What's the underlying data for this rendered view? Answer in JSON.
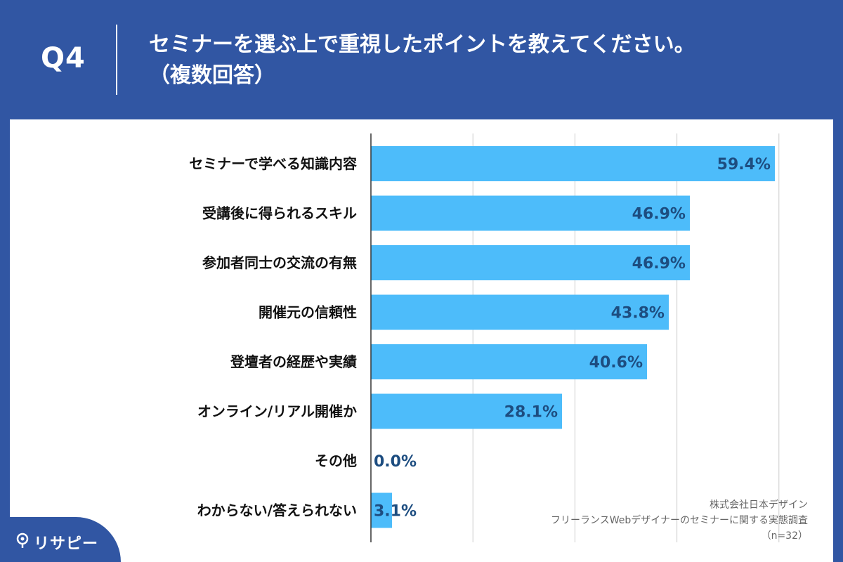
{
  "header": {
    "question_number": "Q4",
    "title_line1": "セミナーを選ぶ上で重視したポイントを教えてください。",
    "title_line2": "（複数回答）"
  },
  "chart_data": {
    "type": "bar",
    "orientation": "horizontal",
    "title": "セミナーを選ぶ上で重視したポイントを教えてください。（複数回答）",
    "categories": [
      "セミナーで学べる知識内容",
      "受講後に得られるスキル",
      "参加者同士の交流の有無",
      "開催元の信頼性",
      "登壇者の経歴や実績",
      "オンライン/リアル開催か",
      "その他",
      "わからない/答えられない"
    ],
    "values": [
      59.4,
      46.9,
      46.9,
      43.8,
      40.6,
      28.1,
      0.0,
      3.1
    ],
    "value_labels": [
      "59.4%",
      "46.9%",
      "46.9%",
      "43.8%",
      "40.6%",
      "28.1%",
      "0.0%",
      "3.1%"
    ],
    "xlim": [
      0,
      60
    ],
    "grid_ticks": [
      0,
      15,
      30,
      45,
      60
    ],
    "grid": true,
    "bar_color": "#4dbcfa"
  },
  "source": {
    "company": "株式会社日本デザイン",
    "survey": "フリーランスWebデザイナーのセミナーに関する実態調査",
    "sample": "（n=32）"
  },
  "logo": {
    "text": "リサピー",
    "icon": "location-pin-icon"
  },
  "colors": {
    "header_bg": "#3156a3",
    "value_text": "#1d4d80"
  }
}
